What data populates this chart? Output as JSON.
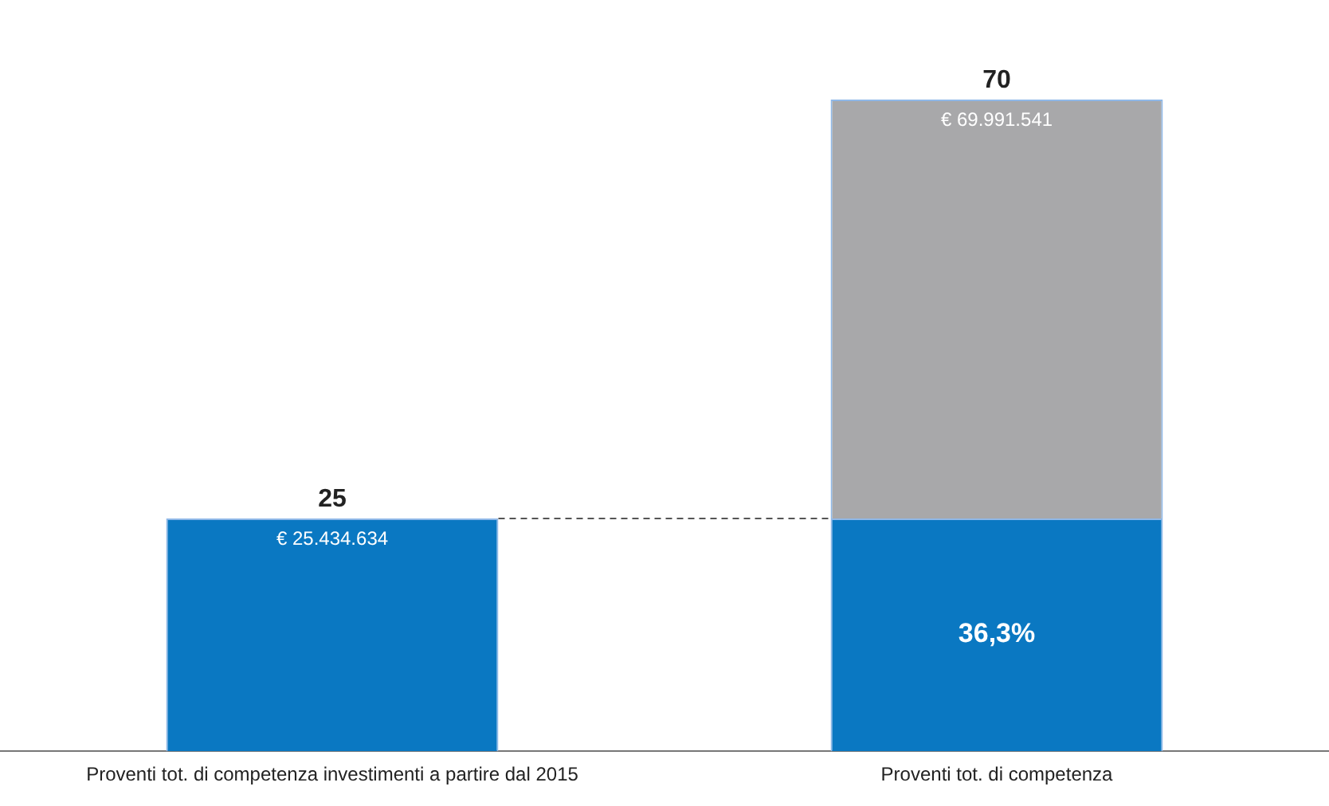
{
  "chart_data": {
    "type": "bar",
    "stacked": true,
    "categories": [
      "Proventi tot. di competenza investimenti a partire dal 2015",
      "Proventi tot. di competenza"
    ],
    "series": [
      {
        "color": "#0a78c2",
        "values": [
          25,
          25
        ],
        "value_labels": [
          "25",
          null
        ]
      },
      {
        "color": "#a8a8aa",
        "values": [
          null,
          45
        ]
      }
    ],
    "totals": [
      null,
      "70"
    ],
    "annotations": [
      {
        "text": "€ 25.434.634",
        "x": "Proventi tot. di competenza investimenti a partire dal 2015",
        "y": 25
      },
      {
        "text": "€ 69.991.541",
        "x": "Proventi tot. di competenza",
        "y": 70
      },
      "36,3%"
    ],
    "ref_lines": [
      {
        "axis": "y",
        "value": 25,
        "line_style": "dashed",
        "color": "#555555"
      }
    ],
    "tick_labels": "x",
    "grid": false,
    "legend": false
  }
}
